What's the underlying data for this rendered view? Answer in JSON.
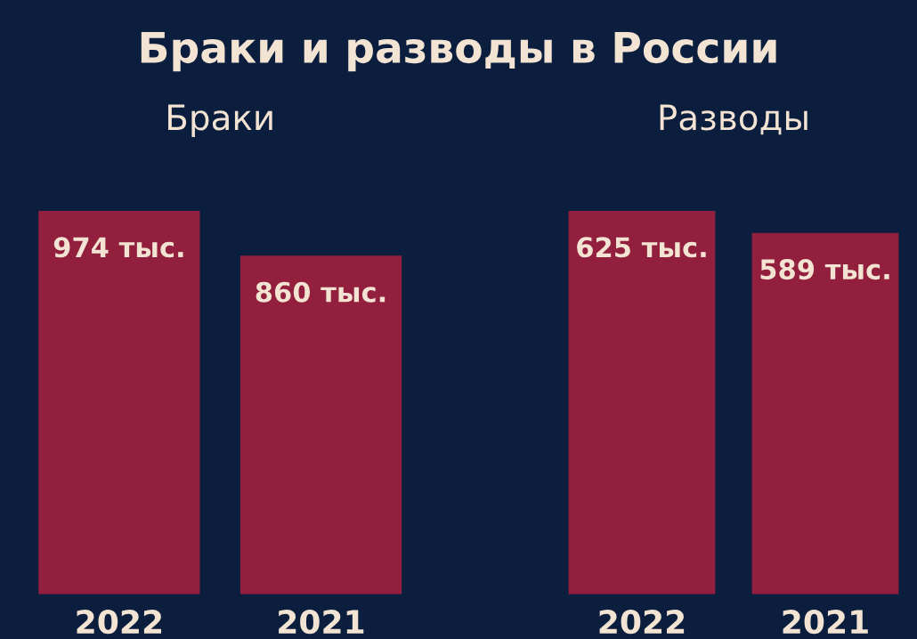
{
  "chart_data": [
    {
      "type": "bar",
      "title": "Браки и разводы в России",
      "subtitle": "Браки",
      "categories": [
        "2022",
        "2021"
      ],
      "values": [
        974,
        860
      ],
      "value_labels": [
        "974 тыс.",
        "860 тыс."
      ],
      "color": "#921f3e",
      "tick_labels": "x",
      "grid": false
    },
    {
      "type": "bar",
      "subtitle": "Разводы",
      "categories": [
        "2022",
        "2021"
      ],
      "values": [
        625,
        589
      ],
      "value_labels": [
        "625 тыс.",
        "589 тыс."
      ],
      "color": "#921f3e",
      "tick_labels": "x",
      "grid": false
    }
  ]
}
